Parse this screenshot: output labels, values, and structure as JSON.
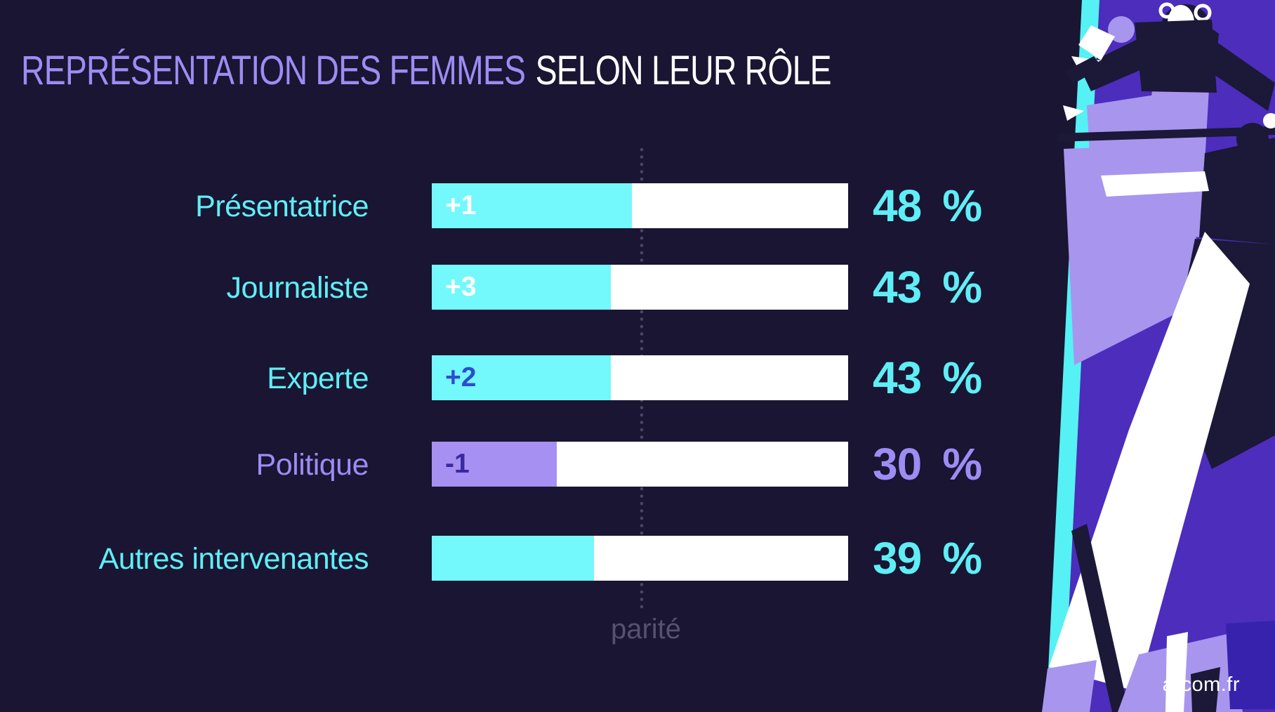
{
  "header": {
    "title_highlight": "REPRÉSENTATION DES FEMMES",
    "title_rest": "SELON LEUR RÔLE"
  },
  "chart_data": {
    "type": "bar",
    "title": "Représentation des femmes selon leur rôle",
    "orientation": "horizontal",
    "categories": [
      "Présentatrice",
      "Journaliste",
      "Experte",
      "Politique",
      "Autres intervenantes"
    ],
    "values": [
      48,
      43,
      43,
      30,
      39
    ],
    "deltas": [
      "+1",
      "+3",
      "+2",
      "-1",
      ""
    ],
    "unit": "%",
    "xlim": [
      0,
      100
    ],
    "parity": {
      "label": "parité",
      "value": 50
    },
    "rows": [
      {
        "label": "Présentatrice",
        "value": 48,
        "percent": "48",
        "unit": "%",
        "delta": "+1",
        "theme": "cyan"
      },
      {
        "label": "Journaliste",
        "value": 43,
        "percent": "43",
        "unit": "%",
        "delta": "+3",
        "theme": "cyan"
      },
      {
        "label": "Experte",
        "value": 43,
        "percent": "43",
        "unit": "%",
        "delta": "+2",
        "theme": "cyan"
      },
      {
        "label": "Politique",
        "value": 30,
        "percent": "30",
        "unit": "%",
        "delta": "-1",
        "theme": "purple"
      },
      {
        "label": "Autres intervenantes",
        "value": 39,
        "percent": "39",
        "unit": "%",
        "delta": "",
        "theme": "cyan"
      }
    ]
  },
  "footer": {
    "credit": "arcom.fr"
  },
  "colors": {
    "background": "#191532",
    "accent_cyan": "#5feef6",
    "accent_purple": "#9d8cf4",
    "bar_track": "#ffffff",
    "bar_fill_cyan": "#73f8fc",
    "bar_fill_purple": "#a690f1",
    "delta_blue": "#2d4cd0",
    "delta_indigo": "#3a28a0",
    "parity_gray": "#55516f",
    "stripe_cyan": "#55f1f4",
    "panel_violet": "#4c2dbc",
    "panel_violet_deep": "#3722ae",
    "panel_lavender": "#a895ee",
    "panel_navy": "#1b1838"
  }
}
